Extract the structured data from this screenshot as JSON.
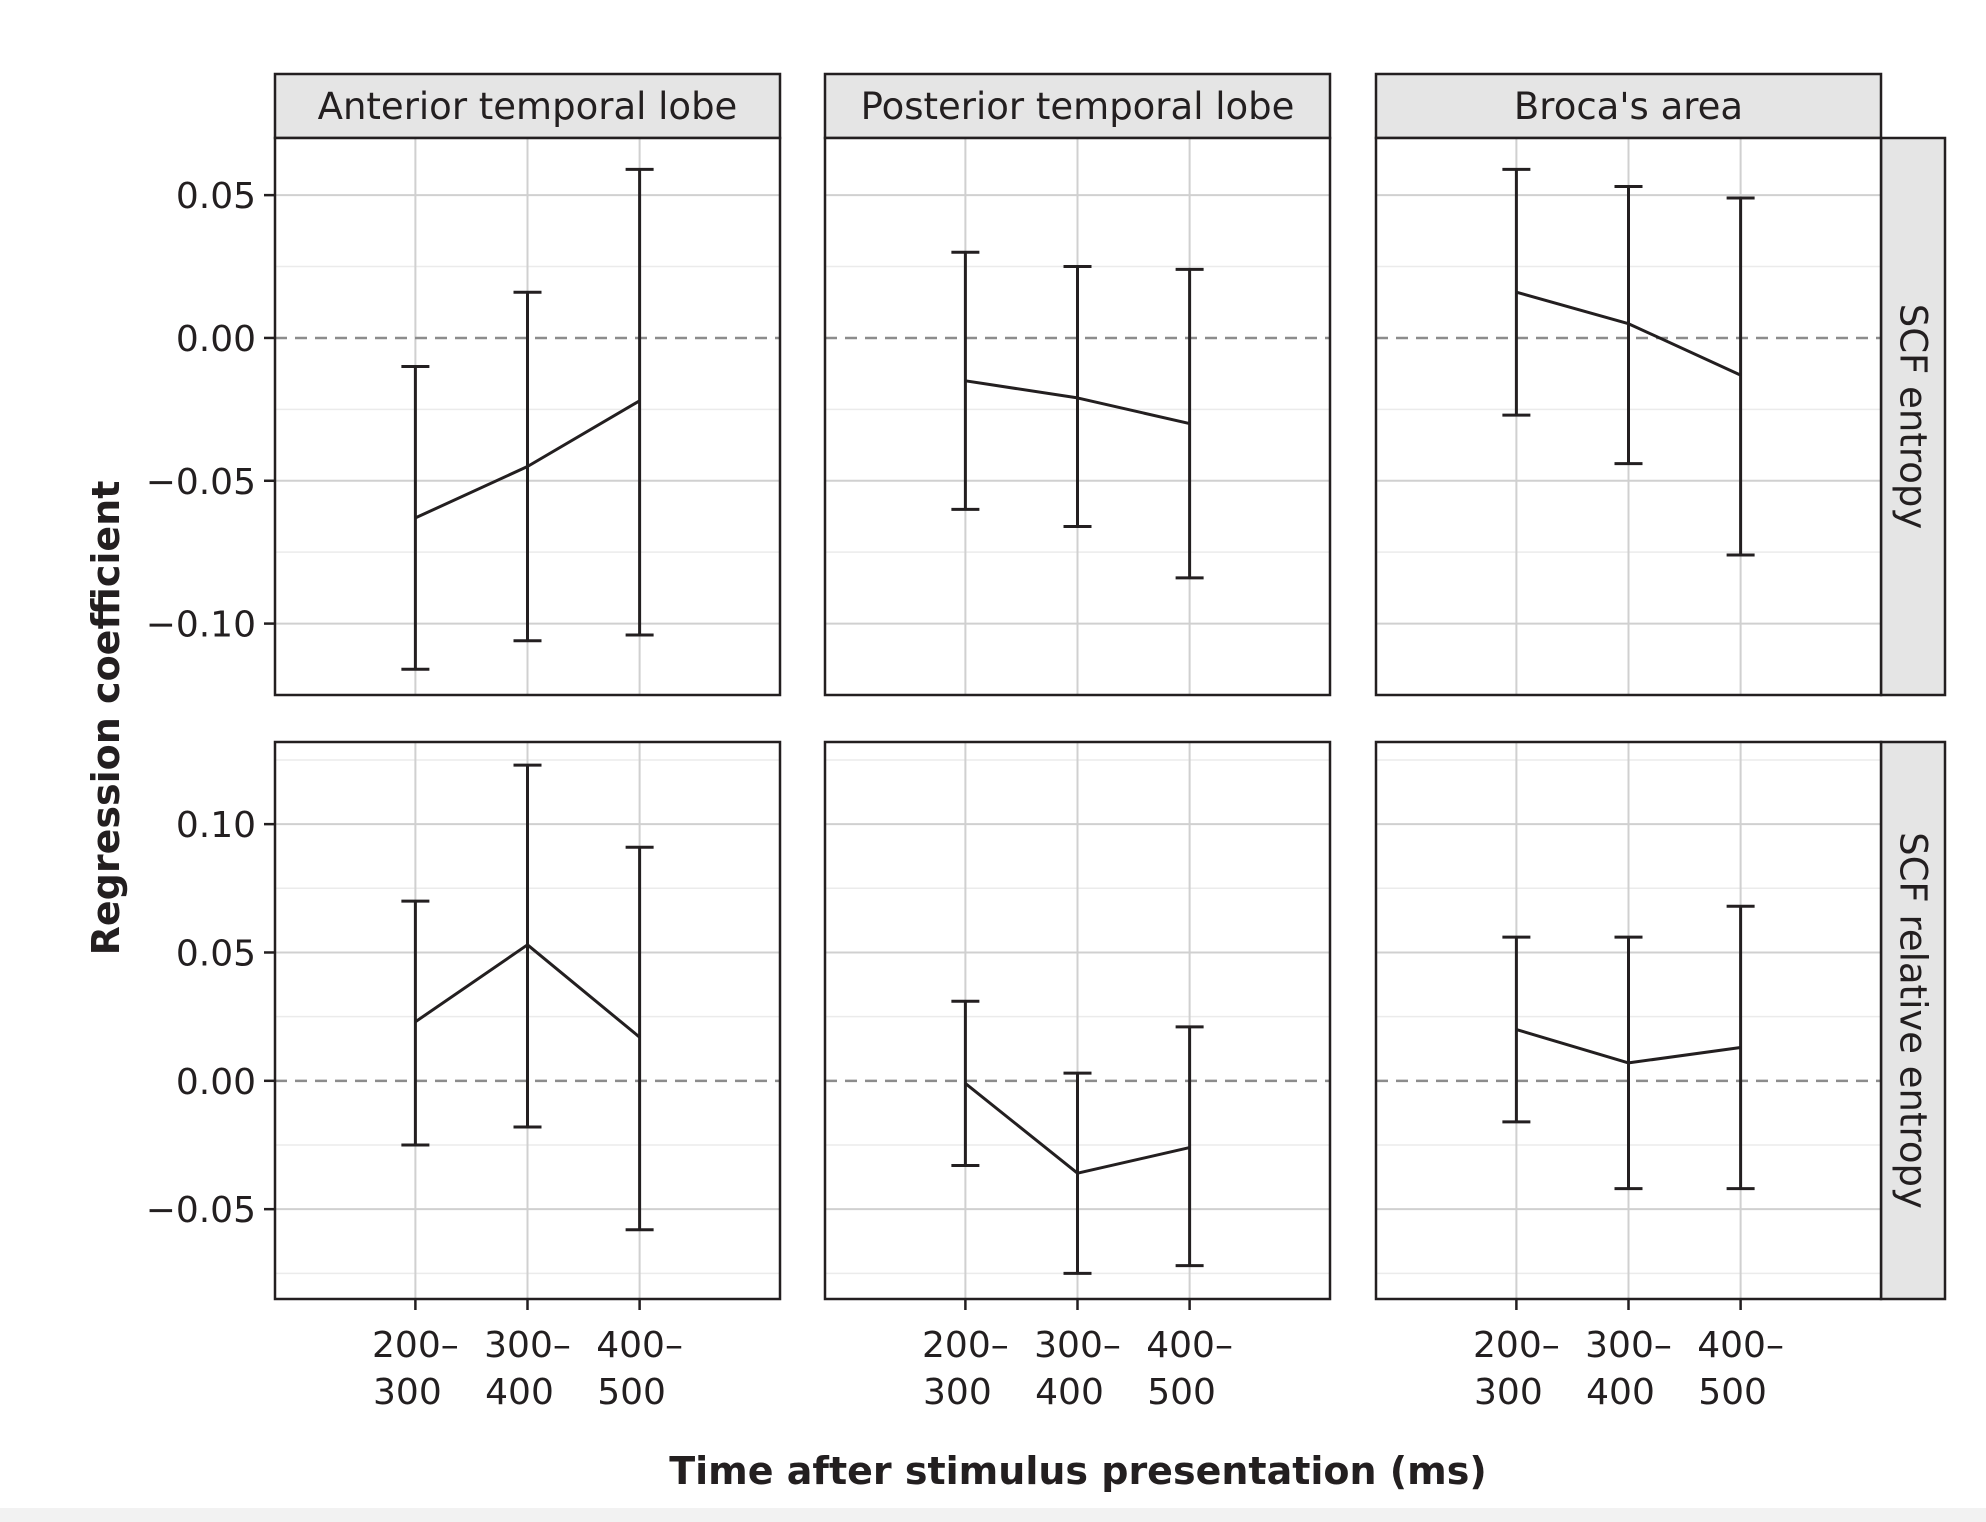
{
  "chart_data": {
    "type": "line",
    "xlabel": "Time after stimulus presentation (ms)",
    "ylabel": "Regression coefficient",
    "x_categories": [
      "200–300",
      "300–400",
      "400–500"
    ],
    "x_tick_labels": [
      [
        "200–",
        "300"
      ],
      [
        "300–",
        "400"
      ],
      [
        "400–",
        "500"
      ]
    ],
    "column_facets": [
      "Anterior temporal lobe",
      "Posterior temporal lobe",
      "Broca's area"
    ],
    "row_facets": [
      "SCF entropy",
      "SCF relative entropy"
    ],
    "grid": true,
    "reference_line": {
      "y": 0,
      "style": "dashed"
    },
    "rows": [
      {
        "name": "SCF entropy",
        "ylim": [
          -0.125,
          0.07
        ],
        "yticks": [
          0.05,
          0.0,
          -0.05,
          -0.1
        ],
        "ytick_labels": [
          "0.05",
          "0.00",
          "−0.05",
          "−0.10"
        ],
        "panels": [
          {
            "facet": "Anterior temporal lobe",
            "mean": [
              -0.063,
              -0.045,
              -0.022
            ],
            "lower": [
              -0.116,
              -0.106,
              -0.104
            ],
            "upper": [
              -0.01,
              0.016,
              0.059
            ]
          },
          {
            "facet": "Posterior temporal lobe",
            "mean": [
              -0.015,
              -0.021,
              -0.03
            ],
            "lower": [
              -0.06,
              -0.066,
              -0.084
            ],
            "upper": [
              0.03,
              0.025,
              0.024
            ]
          },
          {
            "facet": "Broca's area",
            "mean": [
              0.016,
              0.005,
              -0.013
            ],
            "lower": [
              -0.027,
              -0.044,
              -0.076
            ],
            "upper": [
              0.059,
              0.053,
              0.049
            ]
          }
        ]
      },
      {
        "name": "SCF relative entropy",
        "ylim": [
          -0.085,
          0.132
        ],
        "yticks": [
          0.1,
          0.05,
          0.0,
          -0.05
        ],
        "ytick_labels": [
          "0.10",
          "0.05",
          "0.00",
          "−0.05"
        ],
        "panels": [
          {
            "facet": "Anterior temporal lobe",
            "mean": [
              0.023,
              0.053,
              0.017
            ],
            "lower": [
              -0.025,
              -0.018,
              -0.058
            ],
            "upper": [
              0.07,
              0.123,
              0.091
            ]
          },
          {
            "facet": "Posterior temporal lobe",
            "mean": [
              -0.001,
              -0.036,
              -0.026
            ],
            "lower": [
              -0.033,
              -0.075,
              -0.072
            ],
            "upper": [
              0.031,
              0.003,
              0.021
            ]
          },
          {
            "facet": "Broca's area",
            "mean": [
              0.02,
              0.007,
              0.013
            ],
            "lower": [
              -0.016,
              -0.042,
              -0.042
            ],
            "upper": [
              0.056,
              0.056,
              0.068
            ]
          }
        ]
      }
    ]
  },
  "colors": {
    "line": "#231f20",
    "strip_fill": "#e5e5e5",
    "grid_major": "#d0d0d0",
    "grid_minor": "#ebebeb",
    "zero_line": "#8c8c8c"
  }
}
